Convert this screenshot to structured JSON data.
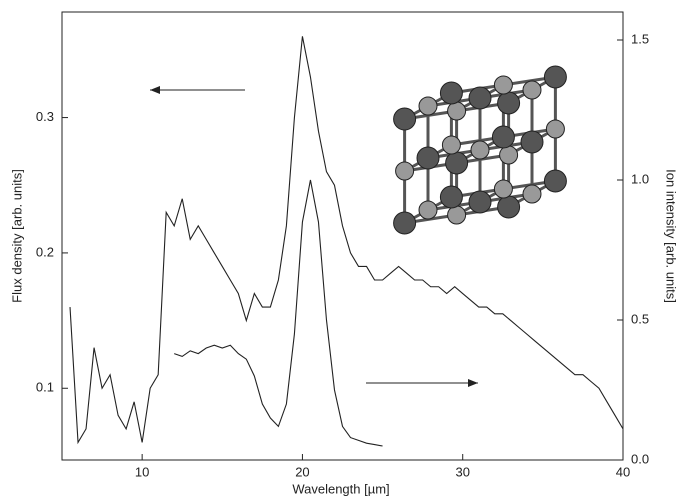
{
  "chart_data": {
    "type": "line",
    "xlabel": "Wavelength [µm]",
    "ylabel": "Flux density [arb. units]",
    "y2label": "Ion intensity [arb. units]",
    "xlim": [
      5,
      40
    ],
    "xticks": [
      10,
      20,
      30,
      40
    ],
    "ylim": [
      0.047,
      0.378
    ],
    "yticks": [
      0.1,
      0.2,
      0.3
    ],
    "y2lim": [
      0,
      1.6
    ],
    "y2ticks": [
      {
        "value": 0,
        "label": "0.0"
      },
      0.5,
      {
        "value": 1,
        "label": "1.0"
      },
      1.5
    ],
    "series": [
      {
        "color": "#222222",
        "axis": "y",
        "x": [
          5.5,
          6,
          6.5,
          7,
          7.5,
          8,
          8.5,
          9,
          9.5,
          10,
          10.5,
          11,
          11.5,
          12,
          12.5,
          13,
          13.5,
          14,
          14.5,
          15,
          15.5,
          16,
          16.5,
          17,
          17.5,
          18,
          18.5,
          19,
          19.5,
          20,
          20.5,
          21,
          21.5,
          22,
          22.5,
          23,
          23.5,
          24,
          24.5,
          25,
          25.5,
          26,
          26.5,
          27,
          27.5,
          28,
          28.5,
          29,
          29.5,
          30,
          30.5,
          31,
          31.5,
          32,
          32.5,
          33,
          33.5,
          34,
          34.5,
          35,
          35.5,
          36,
          36.5,
          37,
          37.5,
          38,
          38.5,
          39,
          39.5,
          40
        ],
        "values": [
          0.16,
          0.06,
          0.07,
          0.13,
          0.1,
          0.11,
          0.08,
          0.07,
          0.09,
          0.06,
          0.1,
          0.11,
          0.23,
          0.22,
          0.24,
          0.21,
          0.22,
          0.21,
          0.2,
          0.19,
          0.18,
          0.17,
          0.15,
          0.17,
          0.16,
          0.16,
          0.18,
          0.22,
          0.3,
          0.36,
          0.33,
          0.29,
          0.26,
          0.25,
          0.22,
          0.2,
          0.19,
          0.19,
          0.18,
          0.18,
          0.185,
          0.19,
          0.185,
          0.18,
          0.18,
          0.175,
          0.175,
          0.17,
          0.175,
          0.17,
          0.165,
          0.16,
          0.16,
          0.155,
          0.155,
          0.15,
          0.145,
          0.14,
          0.135,
          0.13,
          0.125,
          0.12,
          0.115,
          0.11,
          0.11,
          0.105,
          0.1,
          0.09,
          0.08,
          0.07
        ]
      },
      {
        "color": "#222222",
        "axis": "y2",
        "x": [
          12,
          12.5,
          13,
          13.5,
          14,
          14.5,
          15,
          15.5,
          16,
          16.5,
          17,
          17.5,
          18,
          18.5,
          19,
          19.5,
          20,
          20.5,
          21,
          21.5,
          22,
          22.5,
          23,
          23.5,
          24,
          24.5,
          25
        ],
        "values": [
          0.38,
          0.37,
          0.39,
          0.38,
          0.4,
          0.41,
          0.4,
          0.41,
          0.38,
          0.36,
          0.3,
          0.2,
          0.15,
          0.12,
          0.2,
          0.45,
          0.85,
          1.0,
          0.85,
          0.5,
          0.25,
          0.12,
          0.08,
          0.07,
          0.06,
          0.055,
          0.05
        ]
      }
    ]
  }
}
